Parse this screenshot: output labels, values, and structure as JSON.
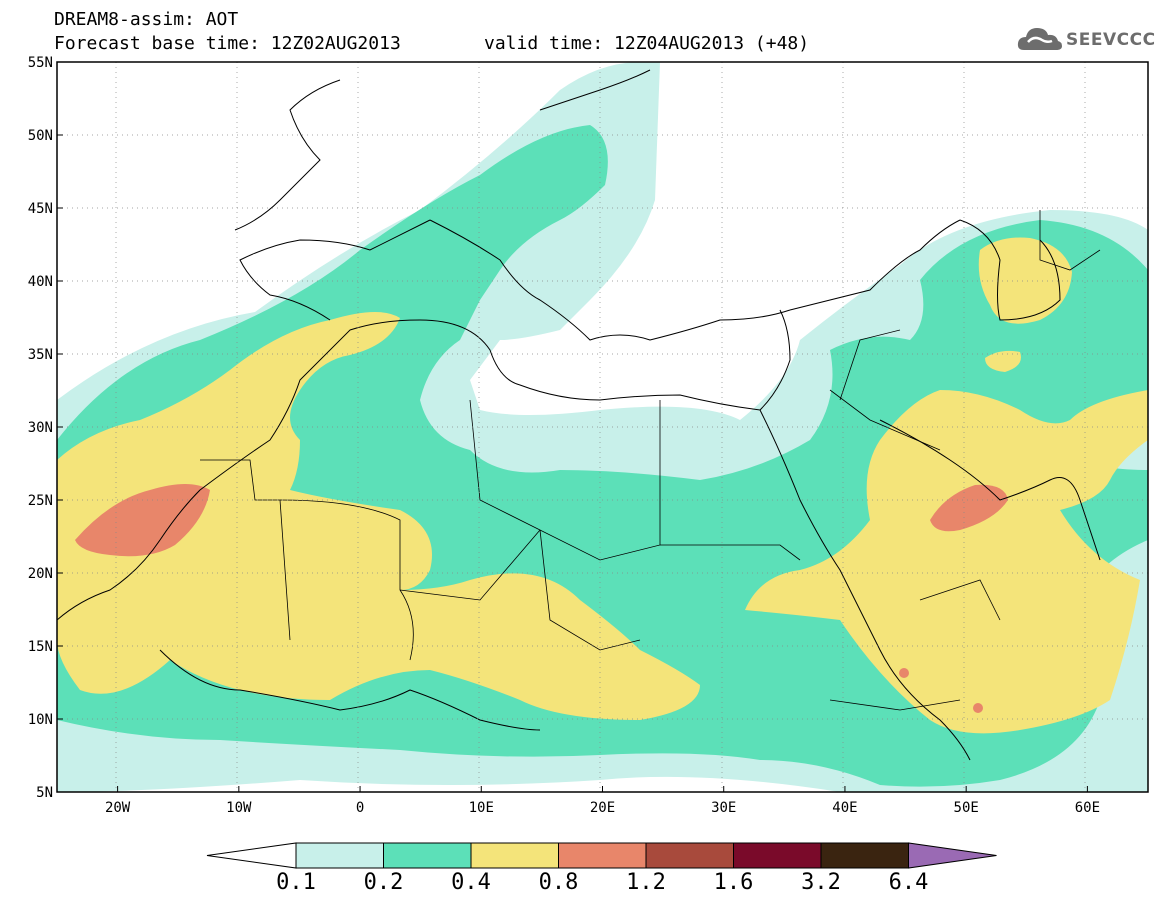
{
  "header": {
    "line1": "DREAM8-assim: AOT",
    "line2": "Forecast base time: 12Z02AUG2013",
    "line2b": "valid time: 12Z04AUG2013 (+48)",
    "logo_text": "SEEVCCC"
  },
  "axes": {
    "lon_labels": [
      "20W",
      "10W",
      "0",
      "10E",
      "20E",
      "30E",
      "40E",
      "50E",
      "60E"
    ],
    "lat_labels": [
      "55N",
      "50N",
      "45N",
      "40N",
      "35N",
      "30N",
      "25N",
      "20N",
      "15N",
      "10N",
      "5N"
    ],
    "lon_range": [
      -25,
      65
    ],
    "lat_range": [
      5,
      55
    ]
  },
  "colorbar": {
    "levels": [
      "0.1",
      "0.2",
      "0.4",
      "0.8",
      "1.2",
      "1.6",
      "3.2",
      "6.4"
    ],
    "colors": [
      "#c8f0ea",
      "#5ce0b8",
      "#f4e47a",
      "#e8866a",
      "#a84a3c",
      "#7a0a2a",
      "#3a2410",
      "#9a6ab4"
    ],
    "under_color": "#ffffff"
  },
  "colors": {
    "c01": "#c8f0ea",
    "c02": "#5ce0b8",
    "c04": "#f4e47a",
    "c08": "#e8866a",
    "coast": "#000000"
  }
}
